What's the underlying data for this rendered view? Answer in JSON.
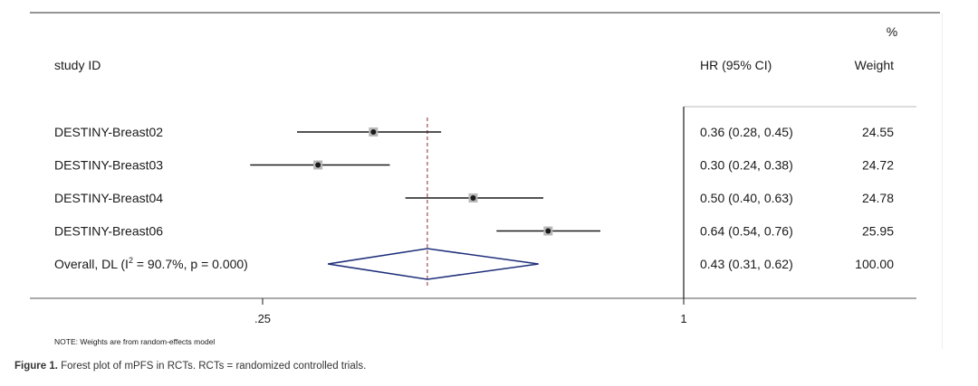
{
  "chart_data": {
    "type": "forest",
    "xscale": "log",
    "xlim": [
      0.2,
      1.35
    ],
    "xticks": [
      {
        "value": 0.25,
        "label": ".25"
      },
      {
        "value": 1,
        "label": "1"
      }
    ],
    "overall_line": 0.43,
    "headers": {
      "study": "study ID",
      "hr": "HR (95% CI)",
      "weight_top": "%",
      "weight": "Weight"
    },
    "studies": [
      {
        "label": "DESTINY-Breast02",
        "hr": 0.36,
        "lo": 0.28,
        "hi": 0.45,
        "ci_text": "0.36 (0.28, 0.45)",
        "weight": "24.55"
      },
      {
        "label": "DESTINY-Breast03",
        "hr": 0.3,
        "lo": 0.24,
        "hi": 0.38,
        "ci_text": "0.30 (0.24, 0.38)",
        "weight": "24.72"
      },
      {
        "label": "DESTINY-Breast04",
        "hr": 0.5,
        "lo": 0.4,
        "hi": 0.63,
        "ci_text": "0.50 (0.40, 0.63)",
        "weight": "24.78"
      },
      {
        "label": "DESTINY-Breast06",
        "hr": 0.64,
        "lo": 0.54,
        "hi": 0.76,
        "ci_text": "0.64 (0.54, 0.76)",
        "weight": "25.95"
      }
    ],
    "overall": {
      "label_pre": "Overall, DL (I",
      "label_sup": "2",
      "label_post": " = 90.7%, p = 0.000)",
      "hr": 0.43,
      "lo": 0.31,
      "hi": 0.62,
      "ci_text": "0.43 (0.31, 0.62)",
      "weight": "100.00"
    },
    "note": "NOTE: Weights are from random-effects model"
  },
  "caption": {
    "prefix": "Figure 1.",
    "text": " Forest plot of mPFS in RCTs. RCTs = randomized controlled trials."
  },
  "colors": {
    "diamond": "#1f2f7a",
    "dashed": "#8b2a2a",
    "ink": "#1a1a1a",
    "rule": "#555555"
  }
}
